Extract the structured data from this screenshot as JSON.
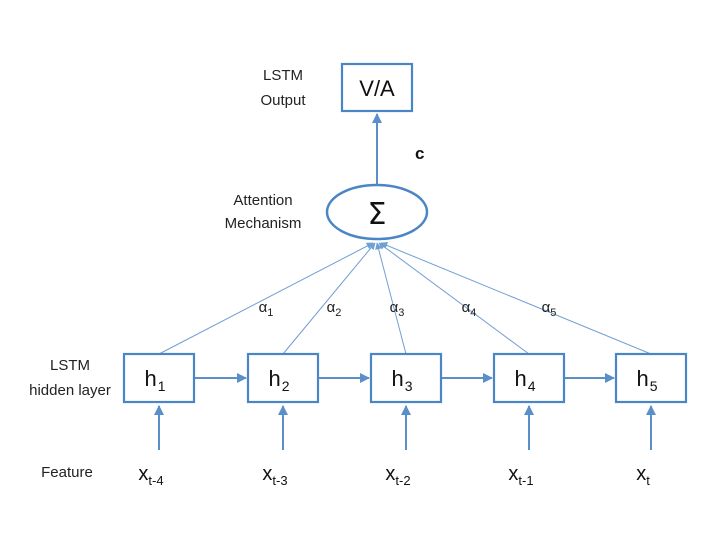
{
  "labels": {
    "lstm_output_line1": "LSTM",
    "lstm_output_line2": "Output",
    "attention_line1": "Attention",
    "attention_line2": "Mechanism",
    "hidden_line1": "LSTM",
    "hidden_line2": "hidden layer",
    "feature": "Feature",
    "context": "c"
  },
  "output_box": {
    "text": "V/A"
  },
  "sum_symbol": "Σ",
  "hidden_units": [
    {
      "base": "h",
      "sub": "1"
    },
    {
      "base": "h",
      "sub": "2"
    },
    {
      "base": "h",
      "sub": "3"
    },
    {
      "base": "h",
      "sub": "4"
    },
    {
      "base": "h",
      "sub": "5"
    }
  ],
  "features": [
    {
      "base": "x",
      "sub": "t-4"
    },
    {
      "base": "x",
      "sub": "t-3"
    },
    {
      "base": "x",
      "sub": "t-2"
    },
    {
      "base": "x",
      "sub": "t-1"
    },
    {
      "base": "x",
      "sub": "t"
    }
  ],
  "alphas": [
    {
      "base": "α",
      "sub": "1"
    },
    {
      "base": "α",
      "sub": "2"
    },
    {
      "base": "α",
      "sub": "3"
    },
    {
      "base": "α",
      "sub": "4"
    },
    {
      "base": "α",
      "sub": "5"
    }
  ],
  "colors": {
    "stroke": "#4a86c5",
    "arrow": "#5b8fc9",
    "text": "#111111"
  }
}
